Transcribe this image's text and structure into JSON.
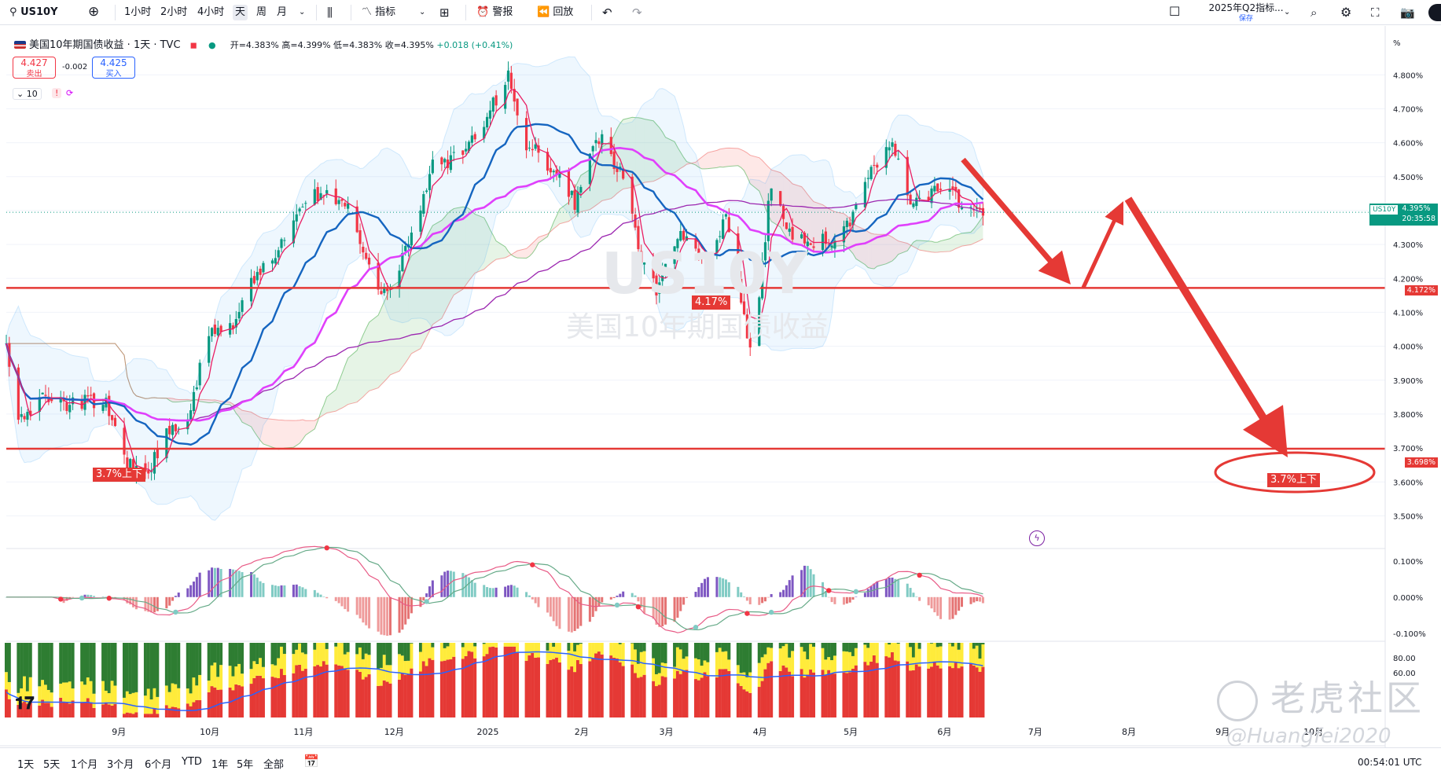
{
  "toolbar": {
    "symbol": "US10Y",
    "intervals": [
      "1小时",
      "2小时",
      "4小时",
      "天",
      "周",
      "月"
    ],
    "active_interval": "天",
    "indicators_label": "指标",
    "alert_label": "警报",
    "replay_label": "回放",
    "layout_name": "2025年Q2指标...",
    "layout_status": "保存"
  },
  "legend": {
    "title": "美国10年期国债收益 · 1天 · TVC",
    "open": "开=4.383%",
    "high": "高=4.399%",
    "low": "低=4.383%",
    "close": "收=4.395%",
    "change": "+0.018 (+0.41%)",
    "sell_price": "4.427",
    "sell_label": "卖出",
    "spread": "-0.002",
    "buy_price": "4.425",
    "buy_label": "买入",
    "indicator_count": "10"
  },
  "watermark": {
    "symbol": "US10Y",
    "name": "美国10年期国债收益"
  },
  "chart_data": [
    {
      "type": "candlestick",
      "title": "美国10年期国债收益 · 1天 · TVC",
      "unit": "%",
      "ylim": [
        3.45,
        4.84
      ],
      "y_ticks": [
        "4.800%",
        "4.700%",
        "4.600%",
        "4.500%",
        "4.400%",
        "4.300%",
        "4.200%",
        "4.100%",
        "4.000%",
        "3.900%",
        "3.800%",
        "3.700%",
        "3.600%",
        "3.500%"
      ],
      "x_ticks": [
        "9月",
        "10月",
        "11月",
        "12月",
        "2025",
        "2月",
        "3月",
        "4月",
        "5月",
        "6月",
        "7月",
        "8月",
        "9月",
        "10月"
      ],
      "x_range": [
        "2024-08-01",
        "2025-10-31"
      ],
      "close_path": [
        [
          "2024-08-01",
          3.99
        ],
        [
          "2024-08-05",
          3.78
        ],
        [
          "2024-08-13",
          3.85
        ],
        [
          "2024-08-20",
          3.83
        ],
        [
          "2024-09-03",
          3.84
        ],
        [
          "2024-09-10",
          3.65
        ],
        [
          "2024-09-16",
          3.62
        ],
        [
          "2024-09-24",
          3.75
        ],
        [
          "2024-09-30",
          3.79
        ],
        [
          "2024-10-07",
          4.03
        ],
        [
          "2024-10-15",
          4.05
        ],
        [
          "2024-10-22",
          4.2
        ],
        [
          "2024-10-31",
          4.3
        ],
        [
          "2024-11-06",
          4.43
        ],
        [
          "2024-11-15",
          4.45
        ],
        [
          "2024-11-22",
          4.4
        ],
        [
          "2024-12-01",
          4.18
        ],
        [
          "2024-12-06",
          4.15
        ],
        [
          "2024-12-12",
          4.32
        ],
        [
          "2024-12-20",
          4.53
        ],
        [
          "2024-12-31",
          4.57
        ],
        [
          "2025-01-07",
          4.68
        ],
        [
          "2025-01-14",
          4.79
        ],
        [
          "2025-01-20",
          4.6
        ],
        [
          "2025-01-28",
          4.53
        ],
        [
          "2025-02-05",
          4.42
        ],
        [
          "2025-02-12",
          4.63
        ],
        [
          "2025-02-20",
          4.51
        ],
        [
          "2025-02-27",
          4.27
        ],
        [
          "2025-03-04",
          4.17
        ],
        [
          "2025-03-12",
          4.32
        ],
        [
          "2025-03-20",
          4.25
        ],
        [
          "2025-03-27",
          4.37
        ],
        [
          "2025-04-04",
          3.99
        ],
        [
          "2025-04-07",
          4.15
        ],
        [
          "2025-04-11",
          4.49
        ],
        [
          "2025-04-17",
          4.33
        ],
        [
          "2025-04-24",
          4.31
        ],
        [
          "2025-05-02",
          4.31
        ],
        [
          "2025-05-08",
          4.38
        ],
        [
          "2025-05-14",
          4.53
        ],
        [
          "2025-05-21",
          4.6
        ],
        [
          "2025-05-27",
          4.44
        ],
        [
          "2025-06-02",
          4.45
        ],
        [
          "2025-06-09",
          4.48
        ],
        [
          "2025-06-13",
          4.41
        ],
        [
          "2025-06-20",
          4.39
        ]
      ],
      "series": [
        {
          "name": "MA (red)",
          "color": "#e91e63"
        },
        {
          "name": "MA (blue)",
          "color": "#1565c0"
        },
        {
          "name": "MA (magenta)",
          "color": "#e040fb"
        },
        {
          "name": "MA (purple)",
          "color": "#9c27b0"
        }
      ],
      "horizontal_lines": [
        {
          "value": 4.172,
          "label": "4.172%",
          "color": "#e53935"
        },
        {
          "value": 3.698,
          "label": "3.698%",
          "color": "#e53935"
        }
      ],
      "last_price": {
        "value": 4.395,
        "symbol": "US10Y",
        "label": "4.395%",
        "countdown": "20:35:58"
      },
      "annotations": [
        {
          "text": "3.7%上下",
          "color": "#e53935"
        },
        {
          "text": "4.17%",
          "color": "#e53935"
        },
        {
          "text": "3.7%上下",
          "color": "#e53935",
          "circled": true
        }
      ]
    },
    {
      "type": "macd",
      "ylim": [
        -0.12,
        0.13
      ],
      "y_ticks": [
        "0.100%",
        "0.000%",
        "-0.100%"
      ],
      "series": [
        {
          "color": "#e85b86"
        },
        {
          "color": "#66aa88"
        }
      ]
    },
    {
      "type": "stacked-area",
      "ylim": [
        0,
        100
      ],
      "y_ticks": [
        "80.00",
        "60.00"
      ],
      "colors": [
        "#2e7d32",
        "#ffeb3b",
        "#e53935"
      ]
    }
  ],
  "bottom_bar": {
    "ranges": [
      "1天",
      "5天",
      "1个月",
      "3个月",
      "6个月",
      "YTD",
      "1年",
      "5年",
      "全部"
    ],
    "clock": "00:54:01 UTC"
  },
  "watermarks": {
    "community": "老虎社区",
    "author": "@Huangfei2020"
  },
  "colors": {
    "up": "#089981",
    "down": "#f23645",
    "annotation": "#e53935"
  }
}
